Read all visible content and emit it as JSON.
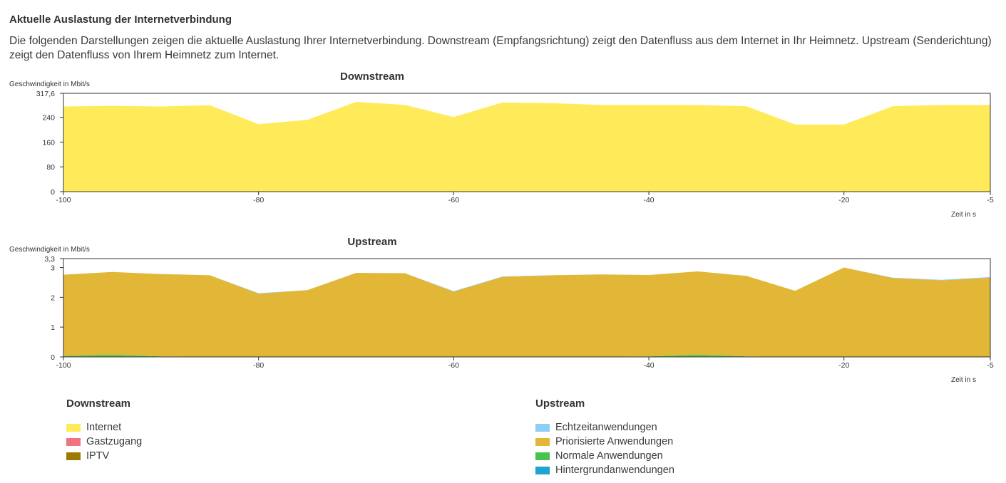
{
  "page": {
    "title": "Aktuelle Auslastung der Internetverbindung",
    "description": "Die folgenden Darstellungen zeigen die aktuelle Auslastung Ihrer Internetverbindung. Downstream (Empfangsrichtung) zeigt den Datenfluss aus dem Internet in Ihr Heimnetz. Upstream (Senderichtung) zeigt den Datenfluss von Ihrem Heimnetz zum Internet."
  },
  "chart_data": [
    {
      "type": "area",
      "title": "Downstream",
      "ylabel": "Geschwindigkeit in Mbit/s",
      "xlabel": "Zeit in s",
      "xlim": [
        -100,
        -5
      ],
      "ylim": [
        0,
        317.6
      ],
      "yticks": [
        0,
        80,
        160,
        240,
        317.6
      ],
      "ytick_labels": [
        "0",
        "80",
        "160",
        "240",
        "317,6"
      ],
      "xticks": [
        -100,
        -80,
        -60,
        -40,
        -20,
        -5
      ],
      "xtick_labels": [
        "-100",
        "-80",
        "-60",
        "-40",
        "-20",
        "-5"
      ],
      "x": [
        -100,
        -95,
        -90,
        -85,
        -80,
        -75,
        -70,
        -65,
        -60,
        -55,
        -50,
        -45,
        -40,
        -35,
        -30,
        -25,
        -20,
        -15,
        -10,
        -5
      ],
      "series": [
        {
          "name": "Internet",
          "color": "#ffeb5a",
          "values": [
            275,
            277,
            275,
            279,
            218,
            232,
            290,
            280,
            241,
            288,
            286,
            280,
            280,
            280,
            276,
            217,
            217,
            276,
            280,
            280
          ]
        },
        {
          "name": "Gastzugang",
          "color": "#f0737f",
          "values": [
            0,
            0,
            0,
            0,
            0,
            0,
            0,
            0,
            0,
            0,
            0,
            0,
            0,
            0,
            0,
            0,
            0,
            0,
            0,
            0
          ]
        },
        {
          "name": "IPTV",
          "color": "#9e7b00",
          "values": [
            0,
            0,
            0,
            0,
            0,
            0,
            0,
            0,
            0,
            0,
            0,
            0,
            0,
            0,
            0,
            0,
            0,
            0,
            0,
            0
          ]
        }
      ]
    },
    {
      "type": "area",
      "title": "Upstream",
      "ylabel": "Geschwindigkeit in Mbit/s",
      "xlabel": "Zeit in s",
      "xlim": [
        -100,
        -5
      ],
      "ylim": [
        0,
        3.3
      ],
      "yticks": [
        0,
        1,
        2,
        3,
        3.3
      ],
      "ytick_labels": [
        "0",
        "1",
        "2",
        "3",
        "3,3"
      ],
      "xticks": [
        -100,
        -80,
        -60,
        -40,
        -20,
        -5
      ],
      "xtick_labels": [
        "-100",
        "-80",
        "-60",
        "-40",
        "-20",
        "-5"
      ],
      "x": [
        -100,
        -95,
        -90,
        -85,
        -80,
        -75,
        -70,
        -65,
        -60,
        -55,
        -50,
        -45,
        -40,
        -35,
        -30,
        -25,
        -20,
        -15,
        -10,
        -5
      ],
      "series": [
        {
          "name": "Hintergrundanwendungen",
          "color": "#1fa3d1",
          "values": [
            0,
            0,
            0,
            0,
            0,
            0,
            0,
            0,
            0,
            0,
            0,
            0,
            0,
            0,
            0,
            0,
            0,
            0,
            0,
            0
          ]
        },
        {
          "name": "Normale Anwendungen",
          "color": "#47c44f",
          "values": [
            0.03,
            0.07,
            0.02,
            0,
            0,
            0,
            0,
            0,
            0,
            0,
            0,
            0,
            0.02,
            0.07,
            0.02,
            0,
            0,
            0,
            0,
            0
          ]
        },
        {
          "name": "Priorisierte Anwendungen",
          "color": "#e2b636",
          "values": [
            2.73,
            2.78,
            2.76,
            2.74,
            2.12,
            2.24,
            2.82,
            2.81,
            2.19,
            2.69,
            2.74,
            2.77,
            2.73,
            2.8,
            2.7,
            2.22,
            3.0,
            2.65,
            2.57,
            2.66
          ]
        },
        {
          "name": "Echtzeitanwendungen",
          "color": "#8ecff8",
          "values": [
            0,
            0,
            0,
            0,
            0.02,
            0,
            0,
            0,
            0.02,
            0.01,
            0,
            0,
            0,
            0,
            0,
            0,
            0,
            0.01,
            0.02,
            0.02
          ]
        }
      ]
    }
  ],
  "legends": {
    "downstream": {
      "heading": "Downstream",
      "items": [
        {
          "label": "Internet",
          "color": "#ffeb5a"
        },
        {
          "label": "Gastzugang",
          "color": "#f0737f"
        },
        {
          "label": "IPTV",
          "color": "#9e7b00"
        }
      ]
    },
    "upstream": {
      "heading": "Upstream",
      "items": [
        {
          "label": "Echtzeitanwendungen",
          "color": "#8ecff8"
        },
        {
          "label": "Priorisierte Anwendungen",
          "color": "#e2b636"
        },
        {
          "label": "Normale Anwendungen",
          "color": "#47c44f"
        },
        {
          "label": "Hintergrundanwendungen",
          "color": "#1fa3d1"
        }
      ]
    }
  }
}
